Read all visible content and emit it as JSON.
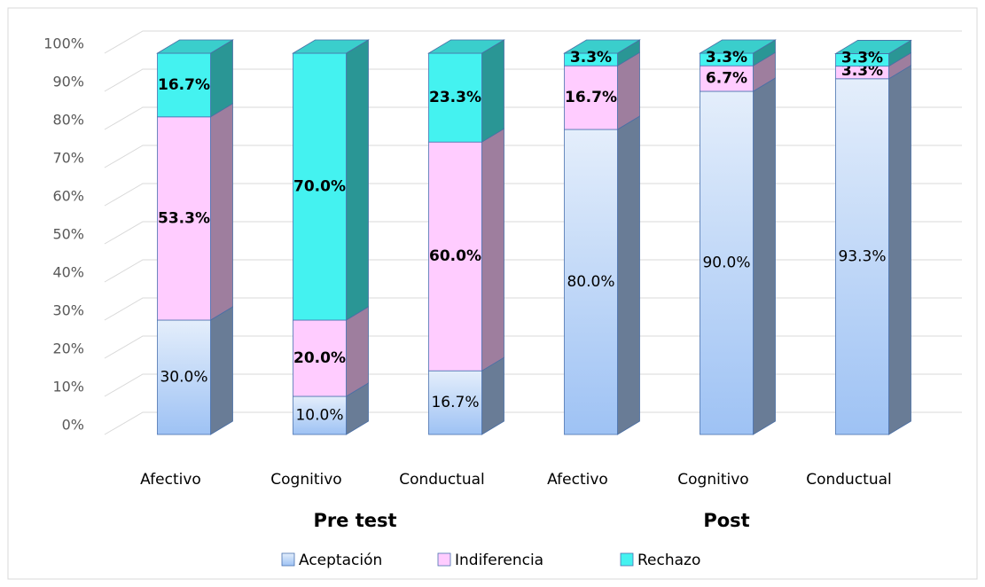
{
  "chart_data": {
    "type": "bar3d_stacked",
    "categories": [
      "Afectivo",
      "Cognitivo",
      "Conductual",
      "Afectivo",
      "Cognitivo",
      "Conductual"
    ],
    "groups": [
      "Pre test",
      "Post"
    ],
    "series": [
      {
        "name": "Aceptación",
        "color": "#a9c8f2",
        "values": [
          30,
          10,
          16.7,
          80,
          90,
          93.3
        ],
        "value_labels": [
          "30.0%",
          "10.0%",
          "16.7%",
          "80.0%",
          "90.0%",
          "93.3%"
        ]
      },
      {
        "name": "Indiferencia",
        "color": "#ffccff",
        "values": [
          53.3,
          20,
          60,
          16.7,
          6.7,
          3.3
        ],
        "value_labels": [
          "53.3%",
          "20.0%",
          "60.0%",
          "16.7%",
          "6.7%",
          "3.3%"
        ]
      },
      {
        "name": "Rechazo",
        "color": "#44f2f0",
        "values": [
          16.7,
          70,
          23.3,
          3.3,
          3.3,
          3.3
        ],
        "value_labels": [
          "16.7%",
          "70.0%",
          "23.3%",
          "3.3%",
          "3.3%",
          "3.3%"
        ]
      }
    ],
    "ylim": [
      0,
      100
    ],
    "yticks": [
      {
        "value": 0,
        "label": "0%"
      },
      {
        "value": 10,
        "label": "10%"
      },
      {
        "value": 20,
        "label": "20%"
      },
      {
        "value": 30,
        "label": "30%"
      },
      {
        "value": 40,
        "label": "40%"
      },
      {
        "value": 50,
        "label": "50%"
      },
      {
        "value": 60,
        "label": "60%"
      },
      {
        "value": 70,
        "label": "70%"
      },
      {
        "value": 80,
        "label": "80%"
      },
      {
        "value": 90,
        "label": "90%"
      },
      {
        "value": 100,
        "label": "100%"
      }
    ],
    "grid": true,
    "legend": "bottom"
  }
}
